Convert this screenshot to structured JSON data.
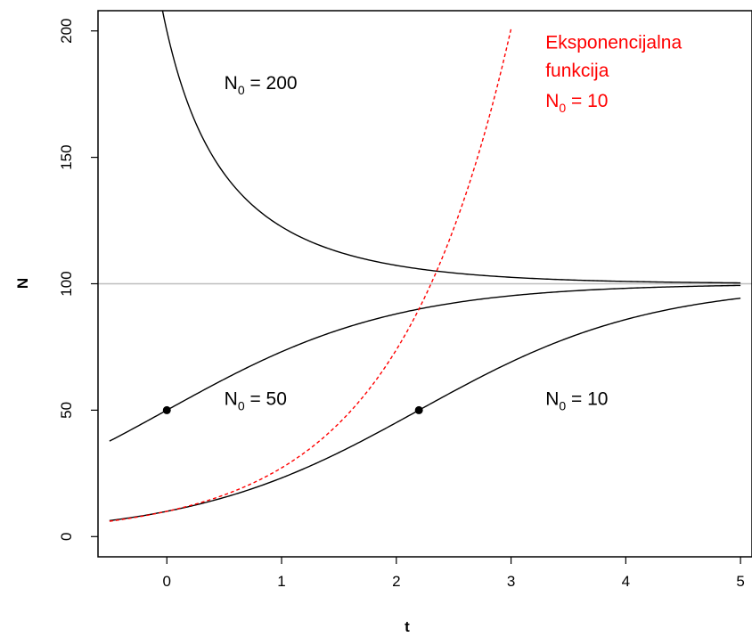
{
  "chart_data": {
    "type": "line",
    "title": "",
    "xlabel": "t",
    "ylabel": "N",
    "xlim": [
      -0.6,
      5.1
    ],
    "ylim": [
      -8,
      208
    ],
    "x_ticks": [
      "0",
      "1",
      "2",
      "3",
      "4",
      "5"
    ],
    "y_ticks": [
      "0",
      "50",
      "100",
      "150",
      "200"
    ],
    "grid": false,
    "legend": "none",
    "carrying_capacity": 100,
    "growth_rate": 1,
    "reference_line": {
      "y": 100,
      "color": "#bebebe"
    },
    "series": [
      {
        "N0": 200,
        "style": "solid",
        "color": "#000000",
        "x_range": [
          -0.5,
          5
        ],
        "values_sampled": {
          "x": [
            0.1,
            1,
            2,
            3,
            5
          ],
          "y": [
            190.5,
            127.0,
            106.5,
            102.3,
            100.3
          ]
        }
      },
      {
        "N0": 50,
        "style": "solid",
        "color": "#000000",
        "x_range": [
          -0.5,
          5
        ],
        "values_sampled": {
          "x": [
            -0.5,
            0,
            1,
            2,
            3,
            5
          ],
          "y": [
            37.8,
            50,
            73.1,
            88.1,
            95.3,
            99.3
          ]
        }
      },
      {
        "N0": 10,
        "style": "solid",
        "color": "#000000",
        "x_range": [
          -0.5,
          5
        ],
        "values_sampled": {
          "x": [
            -0.5,
            0,
            1,
            2.2,
            3,
            5
          ],
          "y": [
            6.3,
            10,
            23.2,
            50,
            69.1,
            94.3
          ]
        }
      },
      {
        "N0": 10,
        "style": "dashed",
        "color": "#ff0000",
        "model": "exponential",
        "x_range": [
          -0.5,
          3.0
        ],
        "values_sampled": {
          "x": [
            -0.5,
            0,
            1,
            2,
            2.3,
            3.0
          ],
          "y": [
            6.1,
            10,
            27.2,
            73.9,
            99.7,
            200.9
          ]
        }
      }
    ],
    "points": [
      {
        "x": 0,
        "y": 50
      },
      {
        "x": 2.197,
        "y": 50
      }
    ],
    "annotations": [
      {
        "text": "N",
        "sub": "0",
        "rest": " = 200",
        "x": 0.5,
        "y": 177,
        "color": "#000000"
      },
      {
        "text": "N",
        "sub": "0",
        "rest": " = 50",
        "x": 0.5,
        "y": 52,
        "color": "#000000"
      },
      {
        "text": "N",
        "sub": "0",
        "rest": " = 10",
        "x": 3.3,
        "y": 52,
        "color": "#000000"
      },
      {
        "text": "Eksponencijalna",
        "x": 3.3,
        "y": 193,
        "color": "#ff0000"
      },
      {
        "text": "funkcija",
        "x": 3.3,
        "y": 182,
        "color": "#ff0000"
      },
      {
        "text": "N",
        "sub": "0",
        "rest": " = 10",
        "x": 3.3,
        "y": 170,
        "color": "#ff0000"
      }
    ]
  }
}
